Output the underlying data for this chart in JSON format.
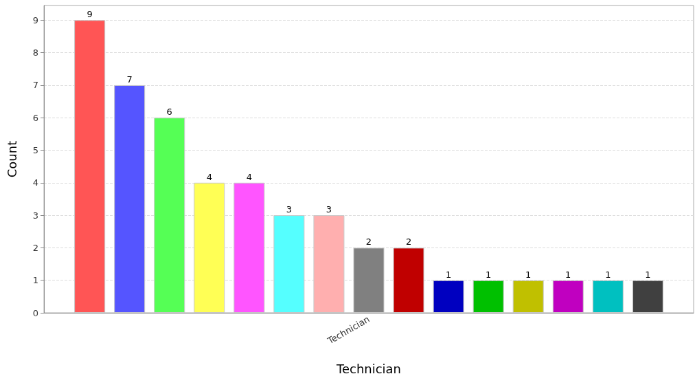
{
  "chart_data": {
    "type": "bar",
    "xlabel": "Technician",
    "ylabel": "Count",
    "categories": [
      "Technician"
    ],
    "series": [
      {
        "color": "#ff5555",
        "values": [
          9
        ]
      },
      {
        "color": "#5555ff",
        "values": [
          7
        ]
      },
      {
        "color": "#55ff55",
        "values": [
          6
        ]
      },
      {
        "color": "#ffff55",
        "values": [
          4
        ]
      },
      {
        "color": "#ff55ff",
        "values": [
          4
        ]
      },
      {
        "color": "#55ffff",
        "values": [
          3
        ]
      },
      {
        "color": "#ffafaf",
        "values": [
          3
        ]
      },
      {
        "color": "#808080",
        "values": [
          2
        ]
      },
      {
        "color": "#c00000",
        "values": [
          2
        ]
      },
      {
        "color": "#0000c0",
        "values": [
          1
        ]
      },
      {
        "color": "#00c000",
        "values": [
          1
        ]
      },
      {
        "color": "#c0c000",
        "values": [
          1
        ]
      },
      {
        "color": "#c000c0",
        "values": [
          1
        ]
      },
      {
        "color": "#00c0c0",
        "values": [
          1
        ]
      },
      {
        "color": "#404040",
        "values": [
          1
        ]
      }
    ],
    "ylim": [
      0,
      9.45
    ],
    "yticks": [
      0,
      1,
      2,
      3,
      4,
      5,
      6,
      7,
      8,
      9
    ],
    "grid": "y",
    "data_labels": true
  }
}
